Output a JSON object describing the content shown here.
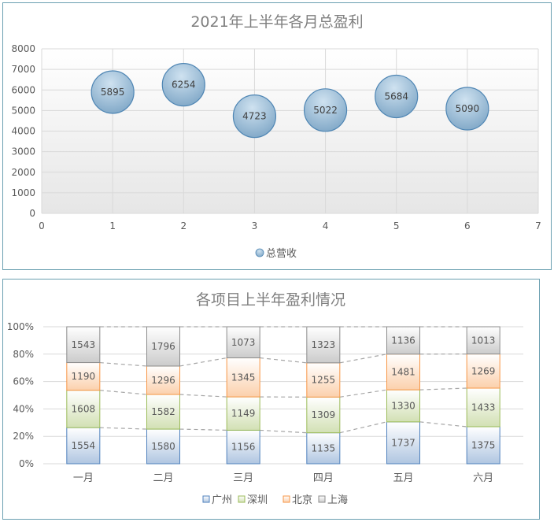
{
  "chart_data": [
    {
      "type": "scatter",
      "style": "bubble",
      "title": "2021年上半年各月总盈利",
      "series": [
        {
          "name": "总营收",
          "x": [
            1,
            2,
            3,
            4,
            5,
            6
          ],
          "values": [
            5895,
            6254,
            4723,
            5022,
            5684,
            5090
          ]
        }
      ],
      "xlim": [
        0,
        7
      ],
      "ylim": [
        0,
        8000
      ],
      "x_ticks": [
        "0",
        "1",
        "2",
        "3",
        "4",
        "5",
        "6",
        "7"
      ],
      "y_ticks": [
        "0",
        "1000",
        "2000",
        "3000",
        "4000",
        "5000",
        "6000",
        "7000",
        "8000"
      ],
      "grid": true,
      "legend": "bottom",
      "colors": {
        "bubble_light": "#cfe2f0",
        "bubble_dark": "#7ea6c6",
        "bubble_edge": "#4f86b4"
      }
    },
    {
      "type": "bar",
      "style": "stacked-percent",
      "title": "各项目上半年盈利情况",
      "categories": [
        "一月",
        "二月",
        "三月",
        "四月",
        "五月",
        "六月"
      ],
      "series": [
        {
          "name": "广州",
          "values": [
            1554,
            1580,
            1156,
            1135,
            1737,
            1375
          ],
          "color": "#4f81bd"
        },
        {
          "name": "深圳",
          "values": [
            1608,
            1582,
            1149,
            1309,
            1330,
            1433
          ],
          "color": "#9bbb59"
        },
        {
          "name": "北京",
          "values": [
            1190,
            1296,
            1345,
            1255,
            1481,
            1269
          ],
          "color": "#f79646"
        },
        {
          "name": "上海",
          "values": [
            1543,
            1796,
            1073,
            1323,
            1136,
            1013
          ],
          "color": "#8c8c8c"
        }
      ],
      "y_ticks": [
        "0%",
        "20%",
        "40%",
        "60%",
        "80%",
        "100%"
      ],
      "ylim": [
        0,
        100
      ],
      "series_lines": true,
      "grid": true,
      "legend": "bottom"
    }
  ]
}
